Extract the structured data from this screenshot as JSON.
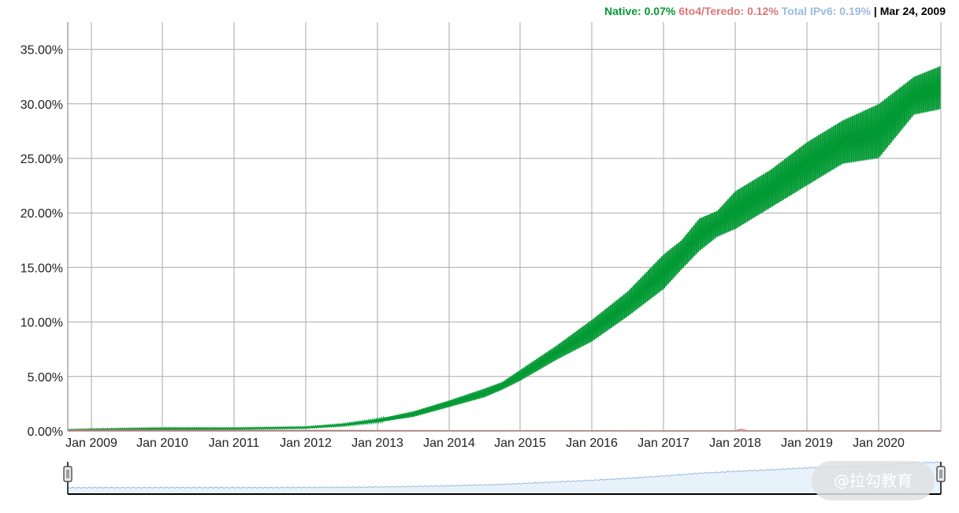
{
  "legend": {
    "native_label": "Native: 0.07%",
    "sixto4_label": "6to4/Teredo: 0.12%",
    "total_label": "Total IPv6: 0.19%",
    "separator": " | ",
    "date_label": "Mar 24, 2009"
  },
  "colors": {
    "native": "#009933",
    "sixto4": "#dd7777",
    "total": "#99bbdd",
    "grid": "#aaaaaa",
    "navigator_fill": "#e8f2fb",
    "navigator_line": "#99bbdd"
  },
  "watermark": "@拉勾教育",
  "chart_data": {
    "type": "line",
    "title": "",
    "xlabel": "",
    "ylabel": "",
    "x_ticks": [
      "Jan 2009",
      "Jan 2010",
      "Jan 2011",
      "Jan 2012",
      "Jan 2013",
      "Jan 2014",
      "Jan 2015",
      "Jan 2016",
      "Jan 2017",
      "Jan 2018",
      "Jan 2019",
      "Jan 2020"
    ],
    "y_ticks": [
      "0.00%",
      "5.00%",
      "10.00%",
      "15.00%",
      "20.00%",
      "25.00%",
      "30.00%",
      "35.00%"
    ],
    "xlim": [
      "2008-09-01",
      "2020-12-31"
    ],
    "ylim": [
      0,
      37.5
    ],
    "grid": true,
    "legend_position": "top-right",
    "series": [
      {
        "name": "Native",
        "x": [
          "2008-09",
          "2009-01",
          "2010-01",
          "2011-01",
          "2012-01",
          "2012-07",
          "2013-01",
          "2013-07",
          "2014-01",
          "2014-07",
          "2014-10",
          "2015-01",
          "2015-07",
          "2016-01",
          "2016-07",
          "2017-01",
          "2017-04",
          "2017-07",
          "2017-10",
          "2018-01",
          "2018-07",
          "2019-01",
          "2019-07",
          "2020-01",
          "2020-07",
          "2020-12"
        ],
        "low": [
          0.05,
          0.05,
          0.1,
          0.15,
          0.25,
          0.45,
          0.8,
          1.3,
          2.2,
          3.1,
          3.8,
          4.6,
          6.5,
          8.2,
          10.5,
          13.0,
          14.8,
          16.5,
          17.8,
          18.5,
          20.5,
          22.5,
          24.5,
          25.0,
          29.0,
          29.5
        ],
        "high": [
          0.15,
          0.2,
          0.3,
          0.3,
          0.4,
          0.65,
          1.1,
          1.8,
          2.8,
          3.9,
          4.5,
          5.6,
          7.8,
          10.2,
          12.8,
          16.2,
          17.5,
          19.5,
          20.2,
          22.0,
          24.0,
          26.5,
          28.5,
          30.0,
          32.5,
          33.5
        ]
      },
      {
        "name": "6to4/Teredo",
        "x": [
          "2008-09",
          "2010-01",
          "2012-01",
          "2014-01",
          "2016-01",
          "2018-01",
          "2018-02",
          "2018-03",
          "2020-12"
        ],
        "y": [
          0.08,
          0.08,
          0.05,
          0.03,
          0.02,
          0.01,
          0.15,
          0.01,
          0.01
        ]
      }
    ]
  }
}
